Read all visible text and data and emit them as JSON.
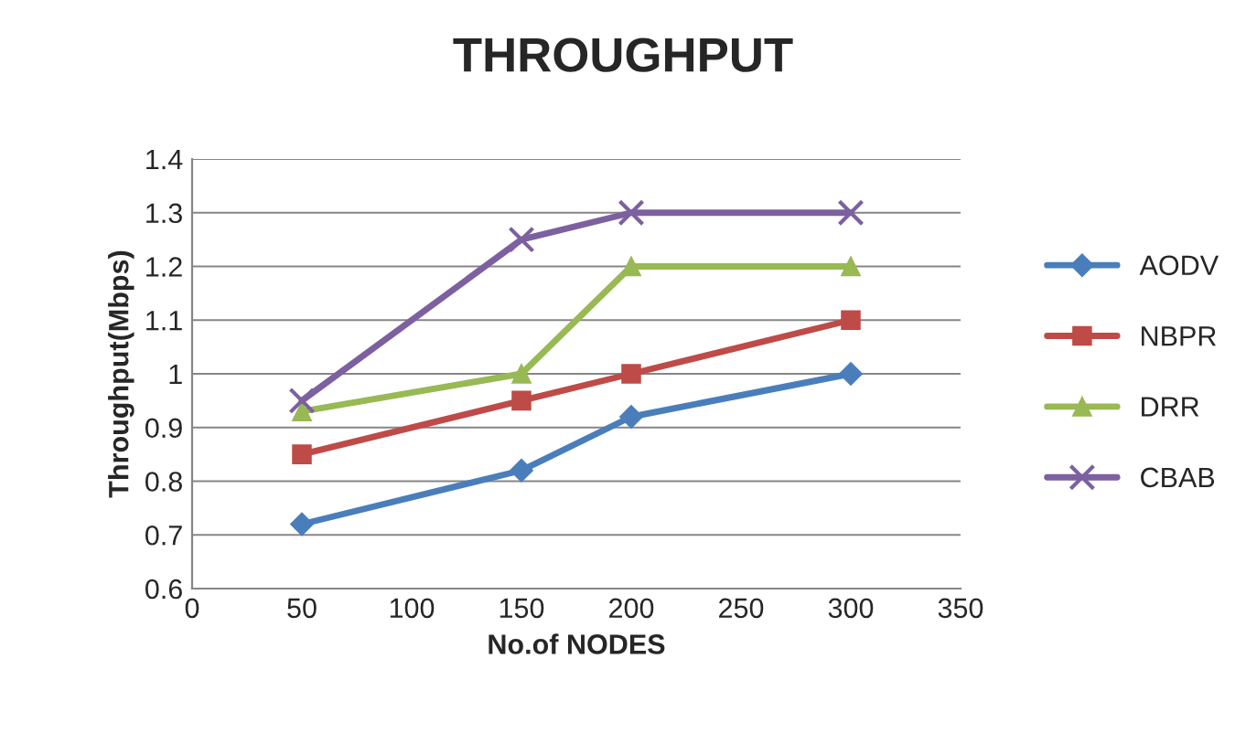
{
  "chart_data": {
    "type": "line",
    "title": "THROUGHPUT",
    "xlabel": "No.of NODES",
    "ylabel": "Throughput(Mbps)",
    "x": [
      50,
      150,
      200,
      300
    ],
    "series": [
      {
        "name": "AODV",
        "color": "#4a7ebb",
        "marker": "diamond",
        "values": [
          0.72,
          0.82,
          0.92,
          1.0
        ]
      },
      {
        "name": "NBPR",
        "color": "#be4b48",
        "marker": "square",
        "values": [
          0.85,
          0.95,
          1.0,
          1.1
        ]
      },
      {
        "name": "DRR",
        "color": "#98b954",
        "marker": "triangle",
        "values": [
          0.93,
          1.0,
          1.2,
          1.2
        ]
      },
      {
        "name": "CBAB",
        "color": "#7d60a0",
        "marker": "cross",
        "values": [
          0.95,
          1.25,
          1.3,
          1.3
        ]
      }
    ],
    "xlim": [
      0,
      350
    ],
    "xticks": [
      0,
      50,
      100,
      150,
      200,
      250,
      300,
      350
    ],
    "ylim": [
      0.6,
      1.4
    ],
    "yticks": [
      0.6,
      0.7,
      0.8,
      0.9,
      1,
      1.1,
      1.2,
      1.3,
      1.4
    ],
    "grid": "y",
    "legend": "right",
    "line_style": "solid"
  }
}
